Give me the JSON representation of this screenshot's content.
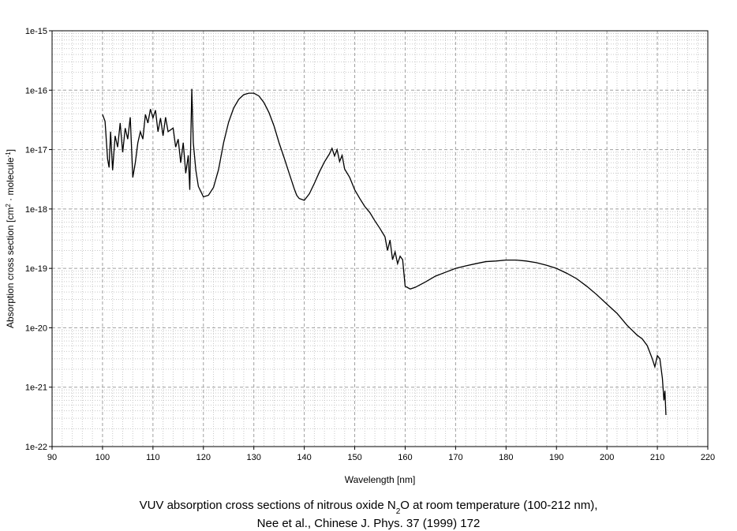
{
  "chart_data": {
    "type": "line",
    "title": [
      "VUV absorption cross sections of nitrous oxide N",
      "2",
      "O at room temperature (100-212 nm),"
    ],
    "subtitle": "Nee et al., Chinese J. Phys. 37 (1999) 172",
    "x_label": "Wavelength [nm]",
    "y_label": [
      "Absorption cross section [cm",
      "2",
      " · molecule",
      "-1",
      "]"
    ],
    "y_log": true,
    "grid": true,
    "xlim": [
      90,
      220
    ],
    "xticks": [
      90,
      100,
      110,
      120,
      130,
      140,
      150,
      160,
      170,
      180,
      190,
      200,
      210,
      220
    ],
    "ylim": [
      1e-22,
      1e-15
    ],
    "yticks": [
      {
        "value": 1e-22,
        "label": "1e-22"
      },
      {
        "value": 1e-21,
        "label": "1e-21"
      },
      {
        "value": 1e-20,
        "label": "1e-20"
      },
      {
        "value": 1e-19,
        "label": "1e-19"
      },
      {
        "value": 1e-18,
        "label": "1e-18"
      },
      {
        "value": 1e-17,
        "label": "1e-17"
      },
      {
        "value": 1e-16,
        "label": "1e-16"
      },
      {
        "value": 1e-15,
        "label": "1e-15"
      }
    ],
    "series": [
      {
        "color": "#000000",
        "x": [
          100,
          100.5,
          101,
          101.3,
          101.6,
          102,
          102.5,
          103,
          103.5,
          104,
          104.5,
          105,
          105.5,
          106,
          106.5,
          107,
          107.5,
          108,
          108.5,
          109,
          109.5,
          110,
          110.5,
          111,
          111.5,
          112,
          112.5,
          113,
          114,
          114.5,
          115,
          115.5,
          116,
          116.5,
          117,
          117.3,
          117.7,
          118,
          118.5,
          119,
          120,
          121,
          122,
          123,
          124,
          125,
          126,
          127,
          128,
          129,
          130,
          131,
          132,
          133,
          134,
          135,
          136,
          137,
          138,
          138.5,
          139,
          140,
          141,
          142,
          143,
          144,
          145,
          145.5,
          146,
          146.5,
          147,
          147.5,
          148,
          149,
          150,
          151,
          152,
          153,
          154,
          155,
          156,
          156.5,
          157,
          157.5,
          158,
          158.5,
          159,
          159.5,
          160,
          161,
          162,
          164,
          166,
          168,
          170,
          172,
          174,
          176,
          178,
          180,
          182,
          184,
          186,
          188,
          190,
          192,
          194,
          196,
          198,
          200,
          202,
          204,
          206,
          207,
          208,
          209,
          209.5,
          210,
          210.5,
          211,
          211.3,
          211.5,
          211.7
        ],
        "values": [
          3.9e-17,
          3e-17,
          7e-18,
          5e-18,
          2e-17,
          4.5e-18,
          1.7e-17,
          1.1e-17,
          2.8e-17,
          9e-18,
          2.3e-17,
          1.5e-17,
          3.5e-17,
          3.4e-18,
          6e-18,
          1.3e-17,
          2e-17,
          1.5e-17,
          3.9e-17,
          2.8e-17,
          4.8e-17,
          3.4e-17,
          4.6e-17,
          2e-17,
          3.4e-17,
          1.7e-17,
          3.5e-17,
          2e-17,
          2.3e-17,
          1.1e-17,
          1.5e-17,
          6e-18,
          1.3e-17,
          4e-18,
          8e-18,
          2.1e-18,
          1.05e-16,
          1.3e-17,
          4.5e-18,
          2.4e-18,
          1.6e-18,
          1.7e-18,
          2.3e-18,
          4.6e-18,
          1.3e-17,
          2.9e-17,
          5e-17,
          7e-17,
          8.4e-17,
          8.9e-17,
          8.9e-17,
          8e-17,
          6.2e-17,
          4.2e-17,
          2.5e-17,
          1.3e-17,
          7.3e-18,
          4e-18,
          2.2e-18,
          1.7e-18,
          1.5e-18,
          1.4e-18,
          1.8e-18,
          2.7e-18,
          4.2e-18,
          6.2e-18,
          8.5e-18,
          1.05e-17,
          7.8e-18,
          1e-17,
          6.3e-18,
          8e-18,
          4.7e-18,
          3.4e-18,
          2.1e-18,
          1.5e-18,
          1.1e-18,
          8.7e-19,
          6.3e-19,
          4.7e-19,
          3.4e-19,
          2e-19,
          3e-19,
          1.4e-19,
          1.9e-19,
          1.2e-19,
          1.6e-19,
          1.4e-19,
          5e-20,
          4.5e-20,
          4.8e-20,
          5.9e-20,
          7.4e-20,
          8.6e-20,
          1e-19,
          1.1e-19,
          1.2e-19,
          1.3e-19,
          1.33e-19,
          1.38e-19,
          1.38e-19,
          1.33e-19,
          1.25e-19,
          1.13e-19,
          1e-19,
          8.3e-20,
          6.7e-20,
          5e-20,
          3.6e-20,
          2.5e-20,
          1.75e-20,
          1.1e-20,
          7.5e-21,
          6.5e-21,
          5e-21,
          3e-21,
          2.2e-21,
          3.4e-21,
          3e-21,
          1.4e-21,
          6e-22,
          8.7e-22,
          3.4e-22
        ]
      }
    ]
  }
}
